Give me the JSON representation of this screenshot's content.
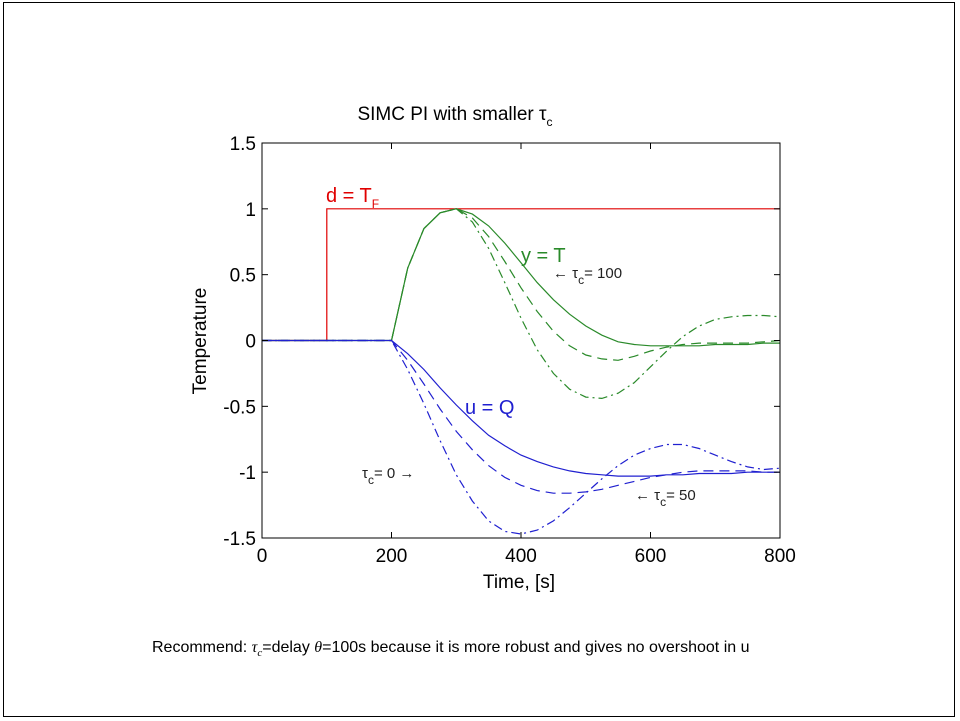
{
  "chart_data": {
    "type": "line",
    "title": "SIMC PI with smaller τ",
    "title_subscript": "c",
    "xlabel": "Time, [s]",
    "ylabel": "Temperature",
    "xlim": [
      0,
      800
    ],
    "ylim": [
      -1.5,
      1.5
    ],
    "xticks": [
      "0",
      "200",
      "400",
      "600",
      "800"
    ],
    "yticks": [
      "1.5",
      "1",
      "0.5",
      "0",
      "-0.5",
      "-1",
      "-1.5"
    ],
    "grid": false,
    "series": [
      {
        "name": "d = T_F",
        "color": "#e00000",
        "style": "solid",
        "x": [
          0,
          100,
          100,
          800
        ],
        "y": [
          0,
          0,
          1,
          1
        ]
      },
      {
        "name": "y = T (τc = 100)",
        "color": "#2a8a2a",
        "style": "solid",
        "x": [
          0,
          200,
          225,
          250,
          275,
          300,
          325,
          350,
          375,
          400,
          425,
          450,
          475,
          500,
          525,
          550,
          575,
          600,
          625,
          650,
          675,
          700,
          725,
          750,
          775,
          800
        ],
        "y": [
          0,
          0,
          0.55,
          0.85,
          0.97,
          1.0,
          0.96,
          0.87,
          0.74,
          0.59,
          0.44,
          0.31,
          0.2,
          0.11,
          0.04,
          -0.01,
          -0.03,
          -0.04,
          -0.04,
          -0.04,
          -0.04,
          -0.03,
          -0.03,
          -0.03,
          -0.02,
          -0.02
        ]
      },
      {
        "name": "y = T (τc = 50)",
        "color": "#2a8a2a",
        "style": "dashed",
        "x": [
          0,
          200,
          225,
          250,
          275,
          300,
          325,
          350,
          375,
          400,
          425,
          450,
          475,
          500,
          525,
          550,
          575,
          600,
          625,
          650,
          675,
          700,
          725,
          750,
          775,
          800
        ],
        "y": [
          0,
          0,
          0.55,
          0.85,
          0.97,
          1.0,
          0.93,
          0.79,
          0.6,
          0.4,
          0.22,
          0.07,
          -0.04,
          -0.11,
          -0.14,
          -0.15,
          -0.12,
          -0.08,
          -0.05,
          -0.03,
          -0.02,
          -0.02,
          -0.02,
          -0.02,
          -0.01,
          0.0
        ]
      },
      {
        "name": "y = T (τc = 0)",
        "color": "#2a8a2a",
        "style": "dashdot",
        "x": [
          0,
          200,
          225,
          250,
          275,
          300,
          325,
          350,
          375,
          400,
          425,
          450,
          475,
          500,
          525,
          550,
          575,
          600,
          625,
          650,
          675,
          700,
          725,
          750,
          775,
          800
        ],
        "y": [
          0,
          0,
          0.55,
          0.85,
          0.97,
          1.0,
          0.9,
          0.7,
          0.44,
          0.17,
          -0.07,
          -0.25,
          -0.37,
          -0.43,
          -0.44,
          -0.4,
          -0.32,
          -0.2,
          -0.08,
          0.03,
          0.11,
          0.16,
          0.18,
          0.19,
          0.19,
          0.18
        ]
      },
      {
        "name": "u = Q (τc = 100)",
        "color": "#2020d0",
        "style": "solid",
        "x": [
          0,
          200,
          225,
          250,
          275,
          300,
          325,
          350,
          375,
          400,
          425,
          450,
          475,
          500,
          525,
          550,
          575,
          600,
          625,
          650,
          675,
          700,
          725,
          750,
          775,
          800
        ],
        "y": [
          0,
          0,
          -0.1,
          -0.22,
          -0.36,
          -0.49,
          -0.61,
          -0.72,
          -0.8,
          -0.87,
          -0.92,
          -0.96,
          -0.99,
          -1.01,
          -1.02,
          -1.03,
          -1.03,
          -1.03,
          -1.02,
          -1.02,
          -1.01,
          -1.01,
          -1.01,
          -1.0,
          -1.0,
          -1.0
        ]
      },
      {
        "name": "u = Q (τc = 50)",
        "color": "#2020d0",
        "style": "dashed",
        "x": [
          0,
          200,
          225,
          250,
          275,
          300,
          325,
          350,
          375,
          400,
          425,
          450,
          475,
          500,
          525,
          550,
          575,
          600,
          625,
          650,
          675,
          700,
          725,
          750,
          775,
          800
        ],
        "y": [
          0,
          0,
          -0.15,
          -0.33,
          -0.52,
          -0.69,
          -0.83,
          -0.95,
          -1.04,
          -1.1,
          -1.14,
          -1.16,
          -1.16,
          -1.15,
          -1.13,
          -1.1,
          -1.07,
          -1.04,
          -1.02,
          -1.0,
          -0.99,
          -0.99,
          -0.99,
          -0.99,
          -1.0,
          -1.0
        ]
      },
      {
        "name": "u = Q (τc = 0)",
        "color": "#2020d0",
        "style": "dashdot",
        "x": [
          0,
          200,
          225,
          250,
          275,
          300,
          325,
          350,
          375,
          400,
          425,
          450,
          475,
          500,
          525,
          550,
          575,
          600,
          625,
          650,
          675,
          700,
          725,
          750,
          775,
          800
        ],
        "y": [
          0,
          0,
          -0.22,
          -0.48,
          -0.76,
          -1.02,
          -1.22,
          -1.37,
          -1.45,
          -1.47,
          -1.44,
          -1.37,
          -1.27,
          -1.16,
          -1.05,
          -0.95,
          -0.87,
          -0.82,
          -0.79,
          -0.79,
          -0.82,
          -0.87,
          -0.92,
          -0.96,
          -0.98,
          -0.97
        ]
      }
    ],
    "annotations": {
      "d_label": "d = T",
      "d_label_sub": "F",
      "y_label": "y = T",
      "u_label": "u = Q",
      "tc100_pre": "← τ",
      "tc100_sub": "c",
      "tc100_post": "= 100",
      "tc50_pre": "← τ",
      "tc50_sub": "c",
      "tc50_post": "= 50",
      "tc0_pre": "τ",
      "tc0_sub": "c",
      "tc0_post": "= 0 →"
    },
    "colors": {
      "disturbance": "#e00000",
      "output": "#2a8a2a",
      "input": "#2020d0"
    }
  },
  "recommendation": {
    "prefix": "Recommend: ",
    "tau": "τ",
    "tau_sub": "c",
    "mid": "=delay ",
    "theta": "θ",
    "suffix": "=100s because it is more robust and gives no overshoot in u"
  }
}
